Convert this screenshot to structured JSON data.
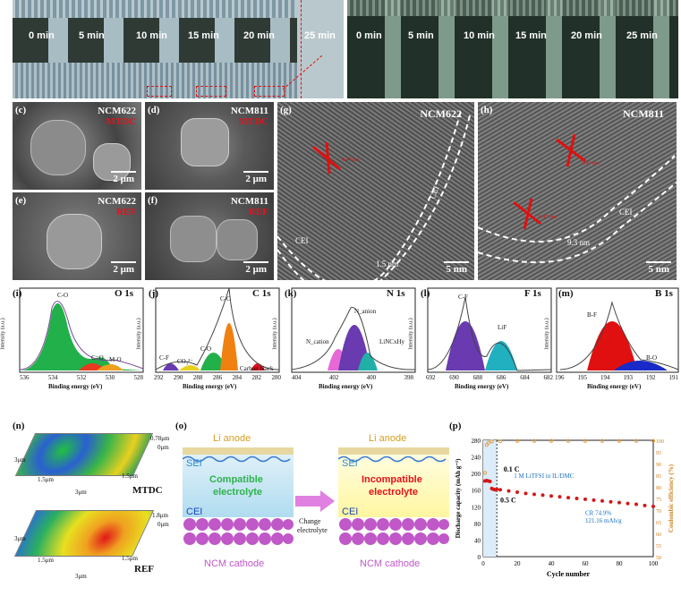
{
  "top_panel_left": {
    "times": [
      "0 min",
      "5 min",
      "10 min",
      "15 min",
      "20 min",
      "25 min"
    ]
  },
  "top_panel_right": {
    "times": [
      "0 min",
      "5 min",
      "10 min",
      "15 min",
      "20 min",
      "25 min"
    ]
  },
  "sem": {
    "c": {
      "label": "(c)",
      "material": "NCM622",
      "condition": "MTDC",
      "scale": "2 μm"
    },
    "d": {
      "label": "(d)",
      "material": "NCM811",
      "condition": "MTDC",
      "scale": "2 μm"
    },
    "e": {
      "label": "(e)",
      "material": "NCM622",
      "condition": "REF",
      "scale": "2 μm"
    },
    "f": {
      "label": "(f)",
      "material": "NCM811",
      "condition": "REF",
      "scale": "2 μm"
    }
  },
  "tem": {
    "g": {
      "label": "(g)",
      "material": "NCM622",
      "cei": "CEI",
      "thickness": "1.5 nm",
      "scale": "5 nm",
      "lattice": "0.47 nm"
    },
    "h": {
      "label": "(h)",
      "material": "NCM811",
      "cei": "CEI",
      "thickness": "9.3 nm",
      "scale": "5 nm",
      "lattice": "0.47 nm"
    }
  },
  "xps": {
    "ylabel": "Intensity (a.u.)",
    "xlabel": "Binding energy (eV)",
    "i": {
      "label": "(i)",
      "title": "O 1s",
      "ticks": [
        "536",
        "534",
        "532",
        "530",
        "528"
      ],
      "peaks": [
        "C-O",
        "C=O",
        "M-O"
      ]
    },
    "j": {
      "label": "(j)",
      "title": "C 1s",
      "ticks": [
        "292",
        "290",
        "288",
        "286",
        "284",
        "282",
        "280"
      ],
      "peaks": [
        "C-F",
        "CO₃²⁻",
        "C-O",
        "C-C",
        "Carbon black"
      ]
    },
    "k": {
      "label": "(k)",
      "title": "N 1s",
      "ticks": [
        "404",
        "402",
        "400",
        "398"
      ],
      "peaks": [
        "N_cation",
        "N_anion",
        "LiNCxHy"
      ]
    },
    "l": {
      "label": "(l)",
      "title": "F 1s",
      "ticks": [
        "692",
        "690",
        "688",
        "686",
        "684",
        "682"
      ],
      "peaks": [
        "C-F",
        "LiF"
      ]
    },
    "m": {
      "label": "(m)",
      "title": "B 1s",
      "ticks": [
        "196",
        "195",
        "194",
        "193",
        "192",
        "191"
      ],
      "peaks": [
        "B-F",
        "B-O"
      ]
    }
  },
  "afm": {
    "label": "(n)",
    "top": {
      "name": "MTDC",
      "zmax": "0.78μm",
      "zmin": "0μm",
      "x": "1.5μm",
      "y": "1.5μm",
      "edge1": "3μm",
      "edge2": "3μm"
    },
    "bottom": {
      "name": "REF",
      "zmax": "1.8μm",
      "zmin": "0μm",
      "x": "1.5μm",
      "y": "1.5μm",
      "edge1": "3μm",
      "edge2": "3μm"
    }
  },
  "schematic": {
    "label": "(o)",
    "left": {
      "anode": "Li anode",
      "sei": "SEI",
      "electrolyte_line1": "Compatible",
      "electrolyte_line2": "electrolyte",
      "cei": "CEI",
      "cathode": "NCM cathode"
    },
    "arrow_line1": "Change",
    "arrow_line2": "electrolyte",
    "right": {
      "anode": "Li anode",
      "sei": "SEI",
      "electrolyte_line1": "Incompatible",
      "electrolyte_line2": "electrolyte",
      "cei": "CEI",
      "cathode": "NCM cathode"
    },
    "colors": {
      "compatible": "#2eb24a",
      "incompatible": "#e8101a",
      "cei": "#1a48b8",
      "cathode": "#c058c8",
      "anode": "#d6a020"
    }
  },
  "chart_data": {
    "type": "scatter",
    "label": "(p)",
    "xlabel": "Cycle number",
    "ylabel": "Discharge capacity (mAh g⁻¹)",
    "y2label": "Coulombic efficiency (%)",
    "xlim": [
      0,
      100
    ],
    "ylim": [
      0,
      280
    ],
    "y2lim": [
      50,
      100
    ],
    "xticks": [
      "0",
      "20",
      "40",
      "60",
      "80",
      "100"
    ],
    "yticks": [
      "0",
      "40",
      "80",
      "120",
      "160",
      "200",
      "240",
      "280"
    ],
    "y2ticks": [
      "50",
      "55",
      "60",
      "65",
      "70",
      "75",
      "80",
      "85",
      "90",
      "95",
      "100"
    ],
    "annotations": [
      "0.1 C",
      "0.5 C",
      "1 M LiTFSI in IL/DMC",
      "CR 74.9%",
      "121.16 mAh/g"
    ],
    "series": [
      {
        "name": "Discharge capacity",
        "color": "#d41818",
        "x": [
          1,
          2,
          3,
          4,
          5,
          6,
          7,
          8,
          10,
          15,
          20,
          25,
          30,
          35,
          40,
          45,
          50,
          55,
          60,
          65,
          70,
          75,
          80,
          85,
          90,
          95,
          100
        ],
        "y": [
          182,
          183,
          182,
          181,
          164,
          162,
          161,
          162,
          161,
          158,
          155,
          152,
          150,
          148,
          146,
          144,
          142,
          140,
          138,
          136,
          134,
          132,
          130,
          128,
          126,
          123,
          121
        ]
      },
      {
        "name": "Coulombic efficiency",
        "color": "#e0a040",
        "x": [
          1,
          2,
          3,
          5,
          10,
          20,
          30,
          40,
          50,
          60,
          70,
          80,
          90,
          100
        ],
        "y": [
          86,
          98,
          99,
          99.5,
          99.6,
          99.7,
          99.7,
          99.7,
          99.7,
          99.7,
          99.7,
          99.7,
          99.7,
          99.7
        ]
      }
    ]
  }
}
